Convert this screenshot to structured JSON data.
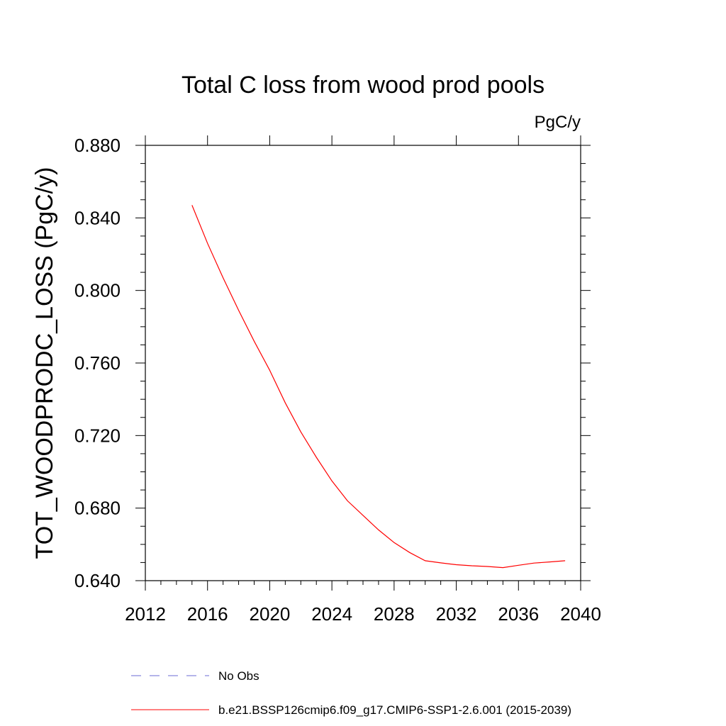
{
  "chart_data": {
    "type": "line",
    "title": "Total C loss from wood prod pools",
    "units_label": "PgC/y",
    "ylabel": "TOT_WOODPRODC_LOSS  (PgC/y)",
    "xlabel": "",
    "xlim": [
      2012,
      2040
    ],
    "ylim": [
      0.64,
      0.88
    ],
    "x_ticks": [
      "2012",
      "2016",
      "2020",
      "2024",
      "2028",
      "2032",
      "2036",
      "2040"
    ],
    "y_ticks": [
      "0.640",
      "0.680",
      "0.720",
      "0.760",
      "0.800",
      "0.840",
      "0.880"
    ],
    "grid": false,
    "legend_position": "bottom",
    "series": [
      {
        "name": "No Obs",
        "color": "#6b6bd6",
        "style": "dashed",
        "x": [],
        "y": []
      },
      {
        "name": "b.e21.BSSP126cmip6.f09_g17.CMIP6-SSP1-2.6.001 (2015-2039)",
        "color": "#ff0000",
        "style": "solid",
        "x": [
          2015,
          2016,
          2017,
          2018,
          2019,
          2020,
          2021,
          2022,
          2023,
          2024,
          2025,
          2026,
          2027,
          2028,
          2029,
          2030,
          2031,
          2032,
          2033,
          2034,
          2035,
          2036,
          2037,
          2038,
          2039
        ],
        "y": [
          0.847,
          0.826,
          0.807,
          0.789,
          0.772,
          0.756,
          0.738,
          0.722,
          0.708,
          0.695,
          0.684,
          0.676,
          0.668,
          0.661,
          0.6555,
          0.651,
          0.6498,
          0.6488,
          0.6482,
          0.6478,
          0.6472,
          0.6485,
          0.6497,
          0.6503,
          0.651
        ]
      }
    ]
  }
}
